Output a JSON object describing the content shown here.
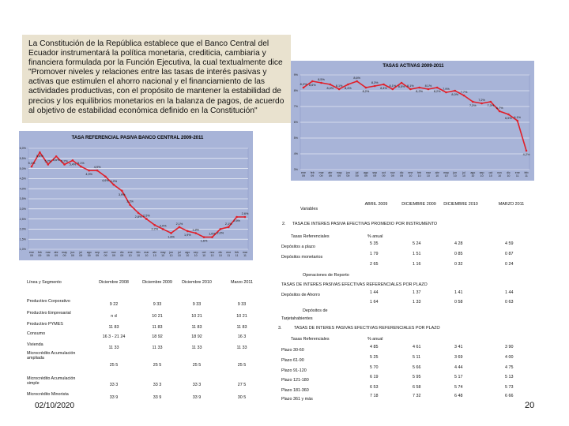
{
  "intro_text": "La Constitución de la República establece que el Banco Central del Ecuador instrumentará la política monetaria, crediticia, cambiaria y financiera formulada por la Función Ejecutiva, la cual textualmente dice \"Promover niveles y relaciones entre las tasas de interés pasivas y activas que estimulen el ahorro nacional y el financiamiento de las actividades productivas, con el propósito de mantener la estabilidad de precios y los equilibrios monetarios en la balanza de pagos, de acuerdo al objetivo de estabilidad económica definido en la Constitución\"",
  "chart_data": [
    {
      "type": "line",
      "title": "TASAS ACTIVAS 2009-2011",
      "ylabel": "",
      "y_ticks": [
        "9%",
        "8%",
        "7%",
        "6%",
        "5%",
        "4%",
        "3%"
      ],
      "ylim": [
        3,
        9
      ],
      "x": [
        "ene-09",
        "feb-09",
        "mar-09",
        "abr-09",
        "may-09",
        "jun-09",
        "jul-09",
        "ago-09",
        "sep-09",
        "oct-09",
        "nov-09",
        "dic-09",
        "ene-10",
        "feb-10",
        "mar-10",
        "abr-10",
        "may-10",
        "jun-10",
        "jul-10",
        "ago-10",
        "sep-10",
        "oct-10",
        "nov-10",
        "dic-10",
        "ene-11",
        "feb-11"
      ],
      "values": [
        8.2,
        8.6,
        8.5,
        8.4,
        8.1,
        8.4,
        8.6,
        8.2,
        8.3,
        8.4,
        8.1,
        8.5,
        8.1,
        8.2,
        8.1,
        8.2,
        7.9,
        8.0,
        7.7,
        7.3,
        7.2,
        7.3,
        6.7,
        6.5,
        6.1,
        4.2
      ],
      "labels": [
        "8,2%",
        "8,6%",
        "8,5%",
        "8,4%",
        "8,1%",
        "8,4%",
        "8,6%",
        "8,2%",
        "8,3%",
        "8,4%",
        "8,1%",
        "8,5%",
        "8,1%",
        "8,2%",
        "8,1%",
        "8,2%",
        "7,9%",
        "8,0%",
        "7,7%",
        "7,3%",
        "7,2%",
        "7,3%",
        "6,7%",
        "6,5%",
        "6,1%",
        "4,2%"
      ]
    },
    {
      "type": "line",
      "title": "TASA REFERENCIAL PASIVA BANCO CENTRAL 2009-2011",
      "y_ticks": [
        "6,0%",
        "5,5%",
        "5,0%",
        "4,5%",
        "4,0%",
        "3,5%",
        "3,0%",
        "2,5%",
        "2,0%",
        "1,5%",
        "1,0%"
      ],
      "ylim": [
        1.0,
        6.0
      ],
      "x": [
        "ene-09",
        "feb-09",
        "mar-09",
        "abr-09",
        "may-09",
        "jun-09",
        "jul-09",
        "ago-09",
        "sep-09",
        "oct-09",
        "nov-09",
        "dic-09",
        "ene-10",
        "feb-10",
        "mar-10",
        "abr-10",
        "may-10",
        "jun-10",
        "jul-10",
        "ago-10",
        "sep-10",
        "oct-10",
        "nov-10",
        "dic-10",
        "ene-11",
        "feb-11",
        "mar-11"
      ],
      "values": [
        5.1,
        5.8,
        5.2,
        5.6,
        5.2,
        5.4,
        5.1,
        4.9,
        4.9,
        4.6,
        4.2,
        3.9,
        3.2,
        2.8,
        2.5,
        2.2,
        2.0,
        1.8,
        2.1,
        1.9,
        1.8,
        1.6,
        1.6,
        2.0,
        2.1,
        2.6,
        2.6
      ],
      "labels": [
        "5,1%",
        "5,8%",
        "5,2%",
        "5,6%",
        "5,2%",
        "5,4%",
        "5,1%",
        "4,9%",
        "4,9%",
        "4,6%",
        "4,2%",
        "3,9%",
        "3,2%",
        "2,8%",
        "2,5%",
        "2,2%",
        "2,0%",
        "1,8%",
        "2,1%",
        "1,9%",
        "1,8%",
        "1,6%",
        "1,6%",
        "2,0%",
        "2,1%",
        "2,6%",
        "2,6%"
      ]
    }
  ],
  "left_table": {
    "headers": [
      "Línea y Segmento",
      "Diciembre 2008",
      "Diciembre 2009",
      "Diciembre 2010",
      "Marzo 2011"
    ],
    "rows": [
      [
        "Productivo Corporativo",
        "9 22",
        "9 33",
        "9 33",
        "9 33"
      ],
      [
        "Productivo Empresarial",
        "n d",
        "10 21",
        "10 21",
        "10 21"
      ],
      [
        "Productivo PYMES",
        "11 83",
        "11 83",
        "11 83",
        "11 83"
      ],
      [
        "Consumo",
        "16 3 - 21 24",
        "18 92",
        "18 92",
        "16 3"
      ],
      [
        "Vivienda",
        "11 33",
        "11 33",
        "11 33",
        "11 33"
      ],
      [
        "Microcrédito Acumulación ampliada",
        "25 5",
        "25 5",
        "25 5",
        "25 5"
      ],
      [
        "Microcrédito Acumulación simple",
        "33 3",
        "33 3",
        "33 3",
        "27 5"
      ],
      [
        "Microcrédito Minorista",
        "33 9",
        "33 9",
        "33 9",
        "30 5"
      ]
    ]
  },
  "right_table": {
    "variables_label": "Variables",
    "col_headers": [
      "ABRIL 2009",
      "DICIEMBRE 2009",
      "DICIEMBRE 2010",
      "MARZO 2011"
    ],
    "section2_num": "2.",
    "section2_title": "TASA DE INTERES PASIVA EFECTIVAS PROMEDIO POR INSTRUMENTO",
    "tasas_ref": "Tasas Referenciales",
    "pct_anual": "% anual",
    "s2_rows": [
      [
        "Depósitos a plazo",
        "5 35",
        "5 24",
        "4 28",
        "4 59"
      ],
      [
        "Depósitos monetarios",
        "1 79",
        "1 51",
        "0 85",
        "0 87"
      ],
      [
        "",
        "2 65",
        "1 16",
        "0 32",
        "0 24"
      ]
    ],
    "operaciones_reporto": "Operaciones de Reporto",
    "section_plazo_title": "TASAS DE INTERES PASIVAS EFECTIVAS REFERENCIALES POR PLAZO",
    "ahorro_label": "Depósitos de Ahorro",
    "ahorro_vals": [
      "1 44",
      "1 37",
      "1 41",
      "1 44"
    ],
    "extra_vals": [
      "1 64",
      "1 33",
      "0 58",
      "0 63"
    ],
    "depositos_de": "Depósitos de",
    "tarjetahabientes": "Tarjetahabientes",
    "section3_num": "3.",
    "section3_title": "TASAS DE INTERES PASIVAS EFECTIVAS REFERENCIALES POR PLAZO",
    "s3_rows": [
      [
        "Plazo 30-60",
        "4 85",
        "4 61",
        "3 41",
        "3 90"
      ],
      [
        "Plazo 61-90",
        "5 25",
        "5 11",
        "3 69",
        "4 00"
      ],
      [
        "Plazo 91-120",
        "5 70",
        "5 66",
        "4 44",
        "4 75"
      ],
      [
        "Plazo 121-180",
        "6 19",
        "5 95",
        "5 17",
        "5 13"
      ],
      [
        "Plazo 181-360",
        "6 53",
        "6 58",
        "5 74",
        "5 73"
      ],
      [
        "Plazo 361 y más",
        "7 18",
        "7 32",
        "6 48",
        "6 66"
      ]
    ]
  },
  "footer": {
    "date": "02/10/2020",
    "page": "20"
  },
  "colors": {
    "chart_bg": "#a8b4d8",
    "line": "#e0202a",
    "intro_bg": "#e9e2cf"
  }
}
